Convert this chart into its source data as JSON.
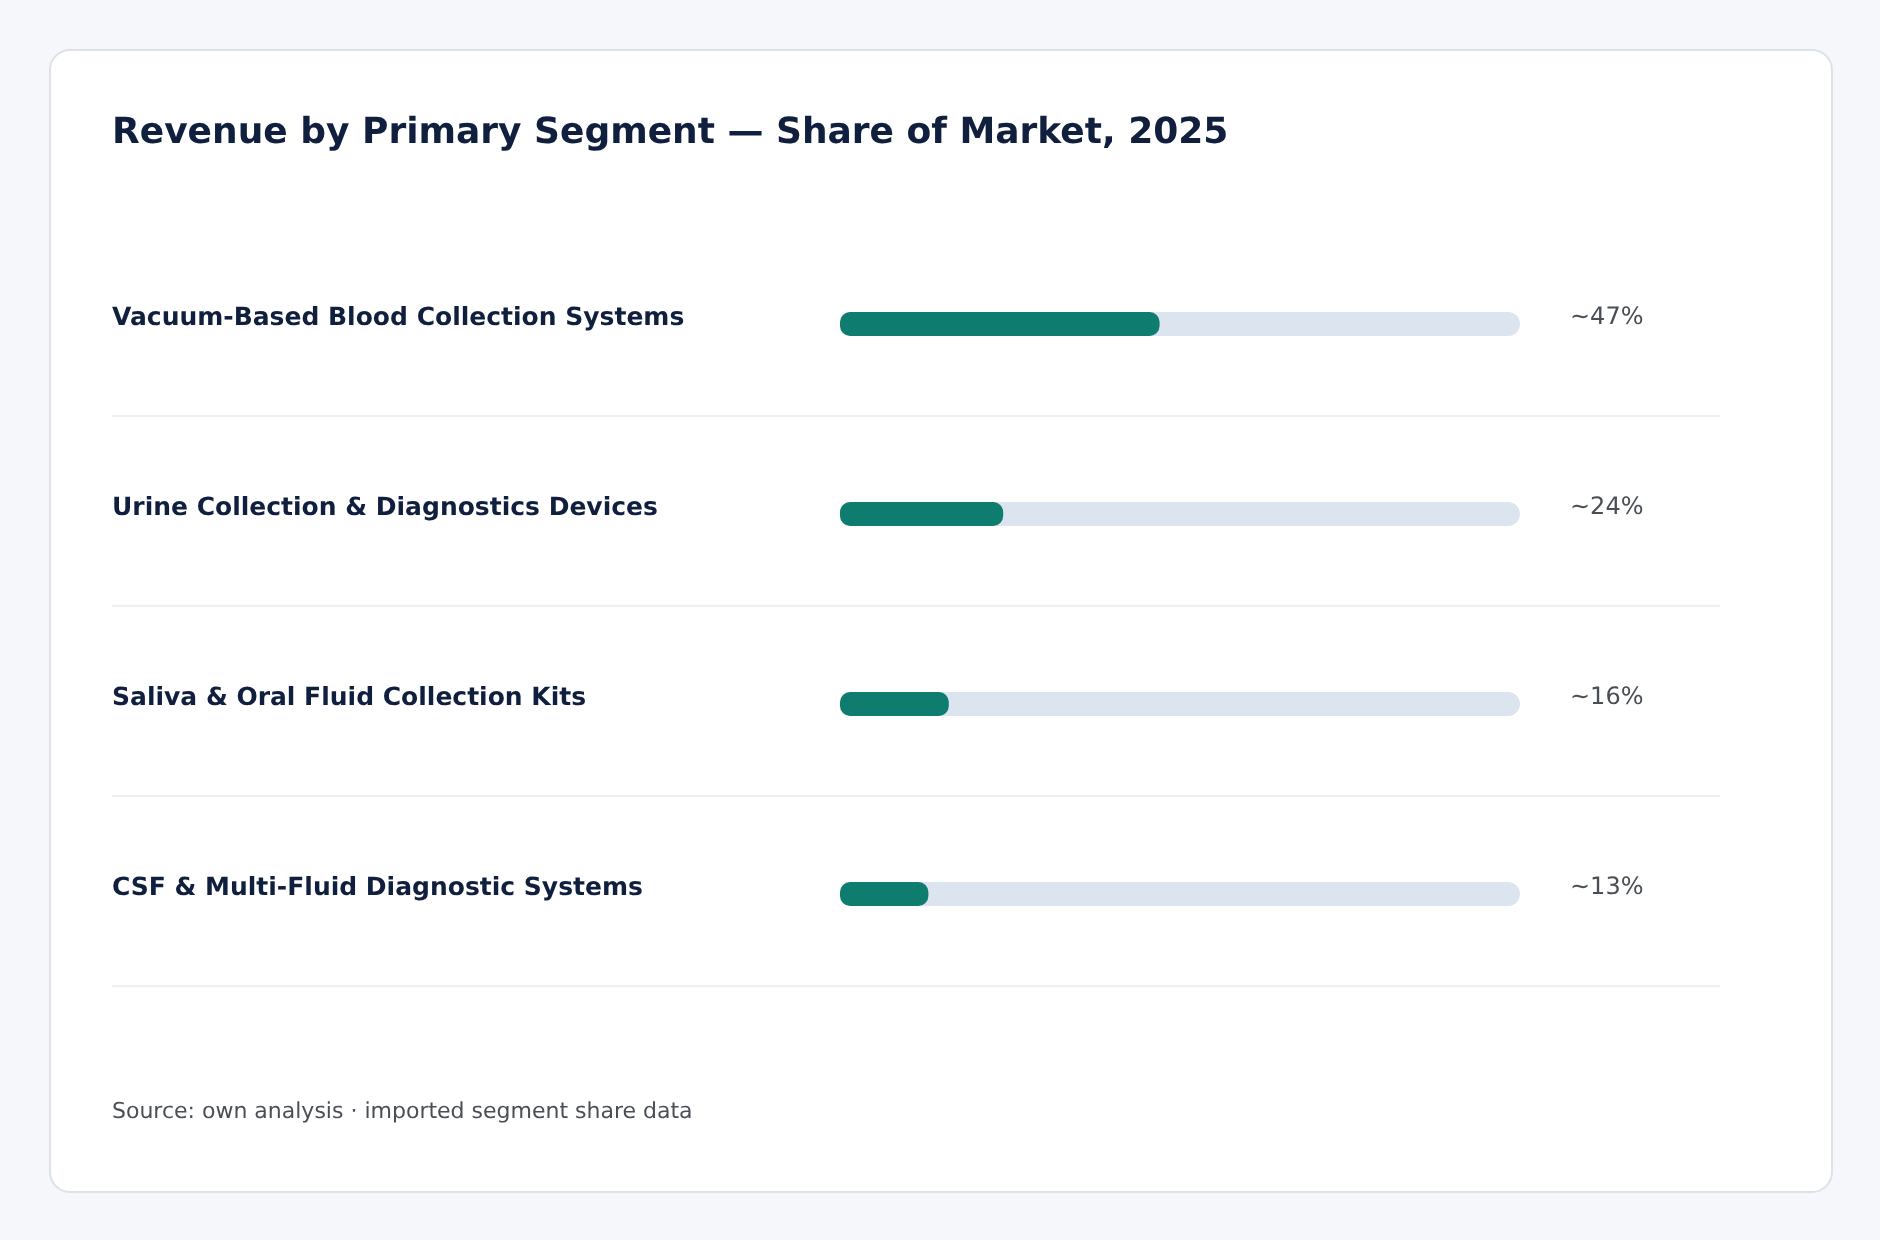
{
  "chart_data": {
    "type": "bar",
    "orientation": "horizontal",
    "title": "Revenue by Primary Segment — Share of Market, 2025",
    "categories": [
      "Vacuum-Based Blood Collection Systems",
      "Urine Collection & Diagnostics Devices",
      "Saliva & Oral Fluid Collection Kits",
      "CSF & Multi-Fluid Diagnostic Systems"
    ],
    "values": [
      47,
      24,
      16,
      13
    ],
    "value_labels": [
      "~47%",
      "~24%",
      "~16%",
      "~13%"
    ],
    "color": "#0e7c6f",
    "xlim": [
      0,
      100
    ],
    "annotations": [
      "Source: own analysis · imported segment share data"
    ]
  }
}
